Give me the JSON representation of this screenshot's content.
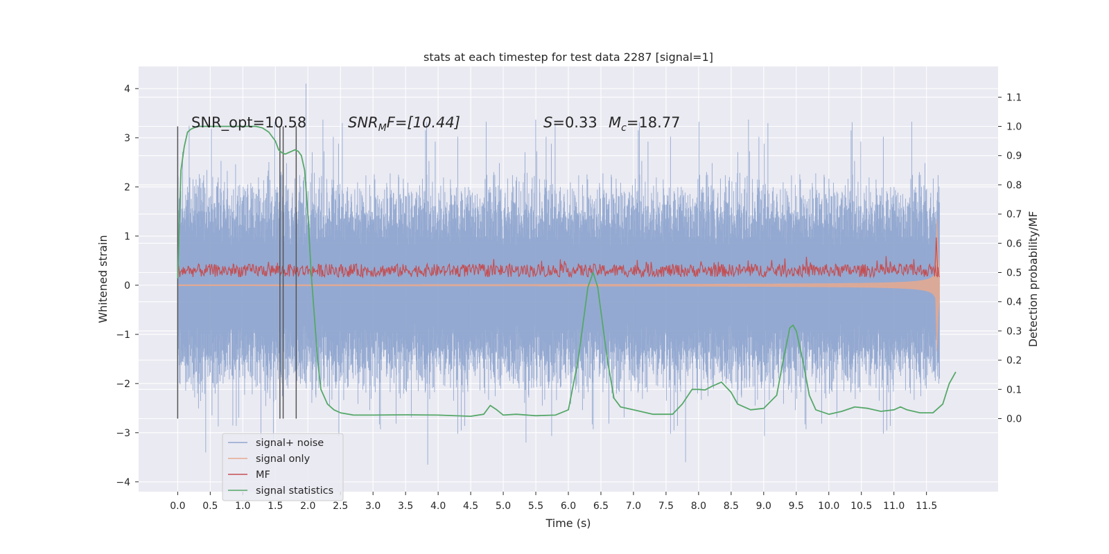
{
  "chart_data": {
    "type": "line",
    "title": "stats at each timestep for test data 2287 [signal=1]",
    "xlabel": "Time (s)",
    "ylabel": "Whitened strain",
    "y2label": "Detection probability/MF",
    "xlim": [
      -0.6,
      12.6
    ],
    "ylim": [
      -4.2,
      4.45
    ],
    "y2lim": [
      -0.25,
      1.205
    ],
    "x_ticks": [
      "0.0",
      "0.5",
      "1.0",
      "1.5",
      "2.0",
      "2.5",
      "3.0",
      "3.5",
      "4.0",
      "4.5",
      "5.0",
      "5.5",
      "6.0",
      "6.5",
      "7.0",
      "7.5",
      "8.0",
      "8.5",
      "9.0",
      "9.5",
      "10.0",
      "10.5",
      "11.0",
      "11.5"
    ],
    "y_ticks": [
      "4",
      "3",
      "2",
      "1",
      "0",
      "−1",
      "−2",
      "−3",
      "−4"
    ],
    "y2_ticks": [
      "1.1",
      "1.0",
      "0.9",
      "0.8",
      "0.7",
      "0.6",
      "0.5",
      "0.4",
      "0.3",
      "0.2",
      "0.1",
      "0.0"
    ],
    "grid": true,
    "legend_position": "lower-left",
    "annotations": {
      "snr_opt": "SNR_opt=10.58",
      "snr_mf_a": "SNR",
      "snr_mf_sub": "M",
      "snr_mf_b": "F=[10.44]",
      "s_sym": "S",
      "s_val": "=0.33",
      "mc_sym": "M",
      "mc_sub": "c",
      "mc_val": "=18.77"
    },
    "vertical_markers": [
      0.0,
      1.57,
      1.62,
      1.82
    ],
    "series": [
      {
        "name": "signal+ noise",
        "color": "#8fa5cf",
        "axis": "left",
        "x_range": [
          0.0,
          11.7
        ],
        "envelope_typical": [
          -1.5,
          1.5
        ],
        "peaks_max": 4.1,
        "peaks_min": -3.65
      },
      {
        "name": "signal only",
        "color": "#e8a98e",
        "axis": "left",
        "x_range": [
          0.0,
          11.7
        ],
        "chirp_peak_time": 11.65,
        "chirp_peak_amplitude": 2.0
      },
      {
        "name": "MF",
        "color": "#c44e52",
        "axis": "right",
        "x_range": [
          0.0,
          11.7
        ],
        "baseline": 0.5,
        "peak_time": 11.65,
        "peak_value": 0.62
      },
      {
        "name": "signal statistics",
        "color": "#55a868",
        "axis": "right",
        "points": [
          [
            0.0,
            0.48
          ],
          [
            0.05,
            0.85
          ],
          [
            0.1,
            0.93
          ],
          [
            0.15,
            0.98
          ],
          [
            0.2,
            0.99
          ],
          [
            0.3,
            1.0
          ],
          [
            0.5,
            1.0
          ],
          [
            0.8,
            1.0
          ],
          [
            1.0,
            1.0
          ],
          [
            1.2,
            1.0
          ],
          [
            1.3,
            0.995
          ],
          [
            1.4,
            0.98
          ],
          [
            1.5,
            0.95
          ],
          [
            1.55,
            0.92
          ],
          [
            1.6,
            0.91
          ],
          [
            1.65,
            0.905
          ],
          [
            1.7,
            0.91
          ],
          [
            1.75,
            0.915
          ],
          [
            1.8,
            0.92
          ],
          [
            1.85,
            0.915
          ],
          [
            1.9,
            0.9
          ],
          [
            1.95,
            0.85
          ],
          [
            2.0,
            0.7
          ],
          [
            2.05,
            0.5
          ],
          [
            2.1,
            0.35
          ],
          [
            2.15,
            0.2
          ],
          [
            2.2,
            0.1
          ],
          [
            2.3,
            0.05
          ],
          [
            2.4,
            0.03
          ],
          [
            2.5,
            0.02
          ],
          [
            2.7,
            0.012
          ],
          [
            3.0,
            0.012
          ],
          [
            3.5,
            0.013
          ],
          [
            4.0,
            0.012
          ],
          [
            4.5,
            0.008
          ],
          [
            4.7,
            0.015
          ],
          [
            4.8,
            0.045
          ],
          [
            4.9,
            0.03
          ],
          [
            5.0,
            0.012
          ],
          [
            5.2,
            0.015
          ],
          [
            5.5,
            0.01
          ],
          [
            5.8,
            0.012
          ],
          [
            6.0,
            0.03
          ],
          [
            6.15,
            0.2
          ],
          [
            6.3,
            0.45
          ],
          [
            6.38,
            0.5
          ],
          [
            6.45,
            0.45
          ],
          [
            6.6,
            0.2
          ],
          [
            6.7,
            0.07
          ],
          [
            6.8,
            0.04
          ],
          [
            7.0,
            0.03
          ],
          [
            7.3,
            0.015
          ],
          [
            7.6,
            0.015
          ],
          [
            7.75,
            0.05
          ],
          [
            7.9,
            0.1
          ],
          [
            8.0,
            0.1
          ],
          [
            8.1,
            0.098
          ],
          [
            8.2,
            0.11
          ],
          [
            8.35,
            0.125
          ],
          [
            8.5,
            0.09
          ],
          [
            8.6,
            0.05
          ],
          [
            8.8,
            0.03
          ],
          [
            9.0,
            0.035
          ],
          [
            9.2,
            0.08
          ],
          [
            9.3,
            0.2
          ],
          [
            9.4,
            0.31
          ],
          [
            9.45,
            0.32
          ],
          [
            9.5,
            0.3
          ],
          [
            9.6,
            0.2
          ],
          [
            9.7,
            0.08
          ],
          [
            9.8,
            0.03
          ],
          [
            10.0,
            0.015
          ],
          [
            10.2,
            0.025
          ],
          [
            10.4,
            0.04
          ],
          [
            10.6,
            0.035
          ],
          [
            10.8,
            0.025
          ],
          [
            11.0,
            0.03
          ],
          [
            11.1,
            0.04
          ],
          [
            11.2,
            0.03
          ],
          [
            11.4,
            0.02
          ],
          [
            11.6,
            0.02
          ],
          [
            11.75,
            0.05
          ],
          [
            11.85,
            0.12
          ],
          [
            11.95,
            0.16
          ]
        ]
      }
    ]
  }
}
